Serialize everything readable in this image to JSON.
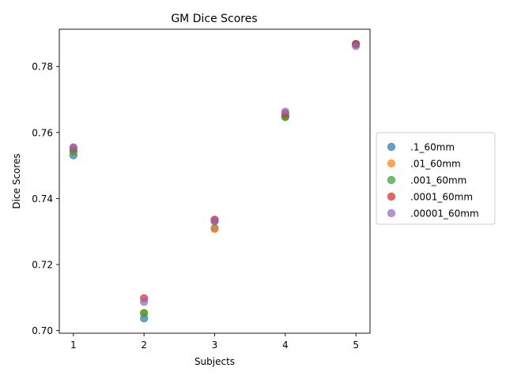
{
  "chart_data": {
    "type": "scatter",
    "title": "GM Dice Scores",
    "xlabel": "Subjects",
    "ylabel": "Dice Scores",
    "x": [
      1,
      2,
      3,
      4,
      5
    ],
    "xticks": [
      "1",
      "2",
      "3",
      "4",
      "5"
    ],
    "yticks": [
      0.7,
      0.72,
      0.74,
      0.76,
      0.78
    ],
    "ytick_labels": [
      "0.70",
      "0.72",
      "0.74",
      "0.76",
      "0.78"
    ],
    "xlim": [
      0.8,
      5.2
    ],
    "ylim": [
      0.6992,
      0.7913
    ],
    "grid": false,
    "legend_position": "right-outside",
    "series": [
      {
        "name": ".1_60mm",
        "color": "#1f77b4",
        "values": [
          0.7531,
          0.7037,
          0.731,
          0.7648,
          0.7868
        ]
      },
      {
        "name": ".01_60mm",
        "color": "#ff7f0e",
        "values": [
          0.7543,
          0.7053,
          0.7308,
          0.7648,
          0.7868
        ]
      },
      {
        "name": ".001_60mm",
        "color": "#2ca02c",
        "values": [
          0.7543,
          0.7053,
          0.7331,
          0.7647,
          0.7868
        ]
      },
      {
        "name": ".0001_60mm",
        "color": "#d62728",
        "values": [
          0.7553,
          0.7098,
          0.7336,
          0.7658,
          0.7868
        ]
      },
      {
        "name": ".00001_60mm",
        "color": "#9467bd",
        "values": [
          0.7555,
          0.7087,
          0.7331,
          0.7663,
          0.7862
        ]
      }
    ]
  }
}
